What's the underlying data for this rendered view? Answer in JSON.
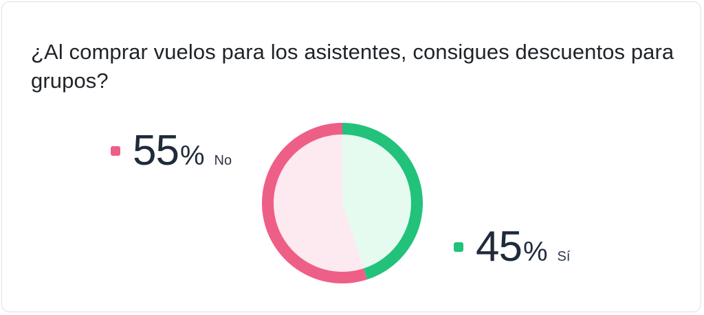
{
  "question": "¿Al comprar vuelos para los asistentes, consigues descuentos para grupos?",
  "colors": {
    "no": "#ee5f88",
    "no_fill": "#fdeaf0",
    "si": "#22c27a",
    "si_fill": "#e5fbef"
  },
  "chart_data": {
    "type": "pie",
    "style": "donut-ring",
    "categories": [
      "No",
      "Sí"
    ],
    "values": [
      55,
      45
    ],
    "value_labels": [
      "55",
      "45"
    ],
    "percent_symbol": "%",
    "title": "¿Al comprar vuelos para los asistentes, consigues descuentos para grupos?",
    "legend": [
      {
        "label": "No",
        "value": "55",
        "color": "#ee5f88"
      },
      {
        "label": "Sí",
        "value": "45",
        "color": "#22c27a"
      }
    ]
  }
}
